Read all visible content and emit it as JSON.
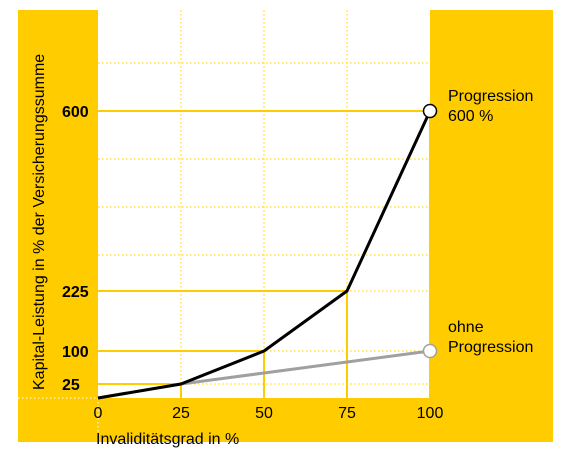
{
  "chart_data": {
    "type": "line",
    "xlabel": "Invaliditätsgrad in %",
    "ylabel": "Kapital-Leistung in % der Versicherungssumme",
    "x": [
      0,
      25,
      50,
      75,
      100
    ],
    "xlim": [
      0,
      100
    ],
    "ylim": [
      0,
      700
    ],
    "x_ticks": [
      "0",
      "25",
      "50",
      "75",
      "100"
    ],
    "y_ticks": [
      {
        "value": 25,
        "label": "25"
      },
      {
        "value": 100,
        "label": "100"
      },
      {
        "value": 225,
        "label": "225"
      },
      {
        "value": 600,
        "label": "600"
      }
    ],
    "series": [
      {
        "label_lines": [
          "Progression",
          "600 %"
        ],
        "values": [
          0,
          25,
          100,
          225,
          600
        ],
        "color": "#000000"
      },
      {
        "label_lines": [
          "ohne",
          "Progression"
        ],
        "values": [
          0,
          25,
          50,
          75,
          100
        ],
        "color": "#a0a0a0"
      }
    ],
    "grid": true,
    "colors": {
      "band": "#ffcc00",
      "plot_bg": "#ffffff",
      "gridline": "#ffcc00"
    }
  }
}
